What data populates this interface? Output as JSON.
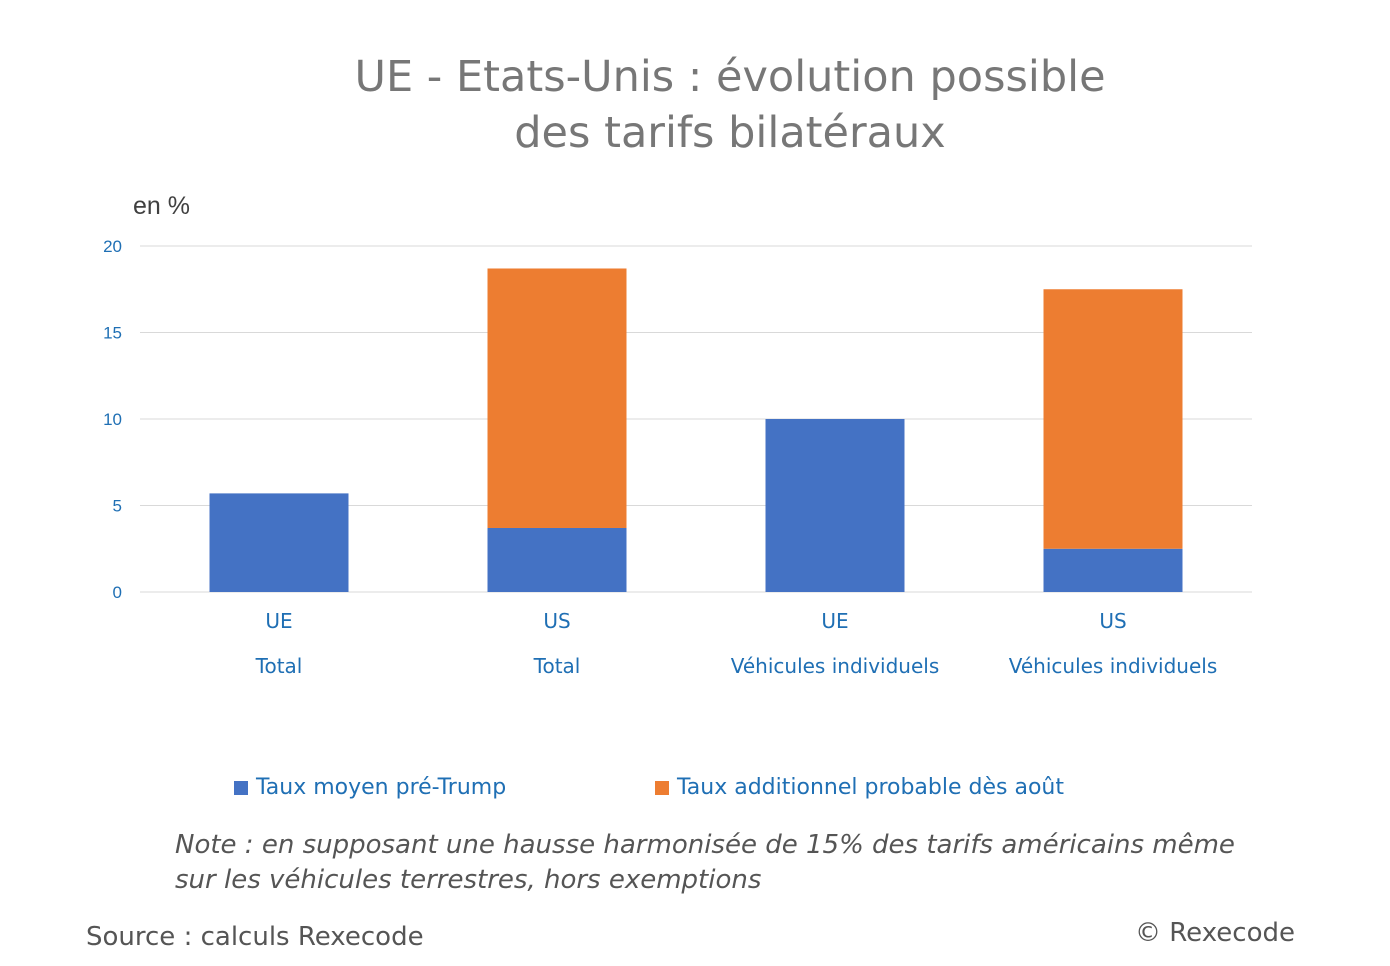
{
  "chart_data": {
    "type": "bar",
    "stacked": true,
    "title": "UE - Etats-Unis : évolution possible des tarifs bilatéraux",
    "title_lines": [
      "UE - Etats-Unis : évolution possible",
      "des tarifs bilatéraux"
    ],
    "ylabel": "en %",
    "ylim": [
      0,
      20
    ],
    "yticks": [
      0,
      5,
      10,
      15,
      20
    ],
    "grid": true,
    "legend_position": "bottom",
    "categories": [
      [
        "UE",
        "Total"
      ],
      [
        "US",
        "Total"
      ],
      [
        "UE",
        "Véhicules individuels"
      ],
      [
        "US",
        "Véhicules individuels"
      ]
    ],
    "series": [
      {
        "name": "Taux moyen pré-Trump",
        "color": "#4472c4",
        "values": [
          5.7,
          3.7,
          10.0,
          2.5
        ]
      },
      {
        "name": "Taux additionnel probable dès août",
        "color": "#ed7d31",
        "values": [
          0,
          15.0,
          0,
          15.0
        ]
      }
    ]
  },
  "note": [
    "Note : en supposant une hausse harmonisée de 15% des tarifs américains même",
    "sur les véhicules terrestres, hors exemptions"
  ],
  "source": "Source : calculs Rexecode",
  "copyright": "© Rexecode",
  "colors": {
    "axis_text": "#1f6fb4",
    "grid": "#d9d9d9"
  }
}
